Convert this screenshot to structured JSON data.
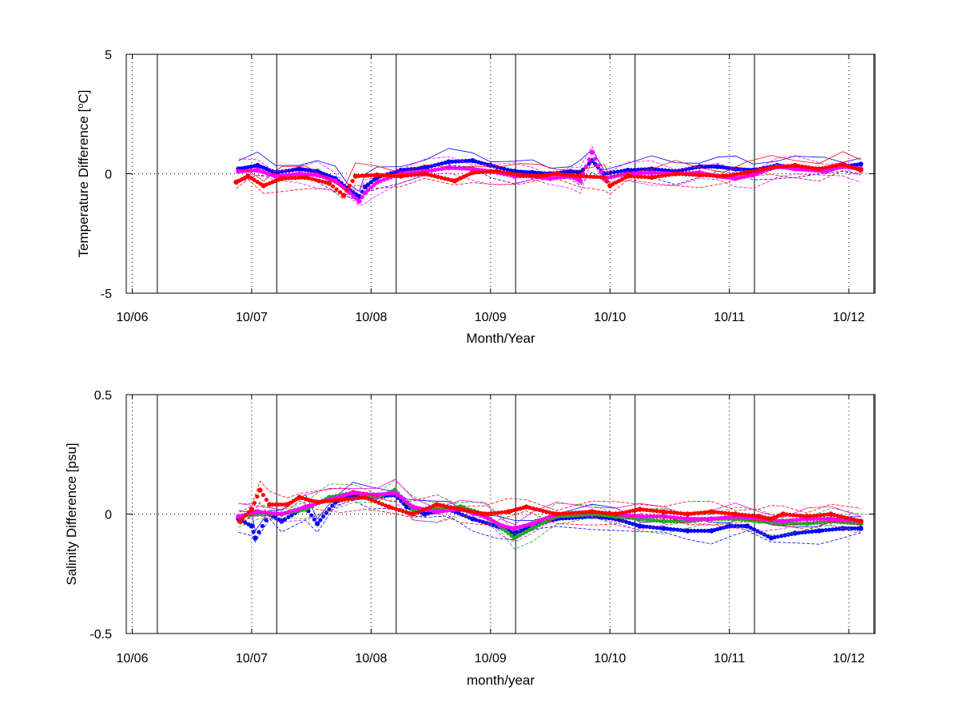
{
  "chart_data": [
    {
      "type": "line",
      "xlabel": "Month/Year",
      "ylabel": "Temperature Difference [°C]",
      "ylabel_parts": {
        "prefix": "Temperature Difference [",
        "superscript": "o",
        "suffix": "C]"
      },
      "ylim": [
        -5,
        5
      ],
      "yticks": [
        -5,
        0,
        5
      ],
      "xlim": [
        2006.7,
        2012.97
      ],
      "xtick_labels": [
        "10/06",
        "10/07",
        "10/08",
        "10/09",
        "10/10",
        "10/11",
        "10/12"
      ],
      "xtick_values": [
        2006.75,
        2007.75,
        2008.75,
        2009.75,
        2010.75,
        2011.75,
        2012.75
      ],
      "vertical_lines_solid": [
        2006.96,
        2007.96,
        2008.96,
        2009.96,
        2010.96,
        2011.96,
        2012.96,
        2013.52
      ],
      "grid_dotted": true,
      "series": [
        {
          "marker_color": "#0000ff",
          "values": [
            [
              2007.64,
              0.2
            ],
            [
              2007.8,
              0.35
            ],
            [
              2007.95,
              0.05
            ],
            [
              2008.15,
              0.2
            ],
            [
              2008.3,
              0.1
            ],
            [
              2008.45,
              -0.2
            ],
            [
              2008.55,
              -0.6
            ],
            [
              2008.65,
              -0.95
            ],
            [
              2008.7,
              -0.55
            ],
            [
              2008.8,
              -0.15
            ],
            [
              2009.0,
              0.15
            ],
            [
              2009.2,
              0.25
            ],
            [
              2009.4,
              0.5
            ],
            [
              2009.6,
              0.55
            ],
            [
              2009.75,
              0.35
            ],
            [
              2009.95,
              0.1
            ],
            [
              2010.1,
              0.05
            ],
            [
              2010.25,
              0.0
            ],
            [
              2010.42,
              0.1
            ],
            [
              2010.5,
              0.05
            ],
            [
              2010.6,
              0.55
            ],
            [
              2010.7,
              0.0
            ],
            [
              2010.9,
              0.15
            ],
            [
              2011.1,
              0.2
            ],
            [
              2011.3,
              0.1
            ],
            [
              2011.5,
              0.3
            ],
            [
              2011.65,
              0.3
            ],
            [
              2011.8,
              0.2
            ],
            [
              2011.95,
              0.15
            ],
            [
              2012.15,
              0.35
            ],
            [
              2012.3,
              0.25
            ],
            [
              2012.55,
              0.2
            ],
            [
              2012.7,
              0.3
            ],
            [
              2012.85,
              0.4
            ]
          ]
        },
        {
          "marker_color": "#ff00ff",
          "values": [
            [
              2007.64,
              0.1
            ],
            [
              2007.8,
              0.15
            ],
            [
              2007.95,
              -0.1
            ],
            [
              2008.15,
              0.0
            ],
            [
              2008.3,
              -0.05
            ],
            [
              2008.45,
              -0.3
            ],
            [
              2008.55,
              -0.7
            ],
            [
              2008.65,
              -1.15
            ],
            [
              2008.7,
              -0.8
            ],
            [
              2008.8,
              -0.35
            ],
            [
              2009.0,
              0.0
            ],
            [
              2009.2,
              0.1
            ],
            [
              2009.4,
              0.25
            ],
            [
              2009.6,
              0.2
            ],
            [
              2009.75,
              0.1
            ],
            [
              2009.95,
              -0.1
            ],
            [
              2010.1,
              -0.1
            ],
            [
              2010.25,
              -0.2
            ],
            [
              2010.42,
              -0.1
            ],
            [
              2010.5,
              -0.3
            ],
            [
              2010.6,
              0.9
            ],
            [
              2010.7,
              -0.2
            ],
            [
              2010.9,
              0.0
            ],
            [
              2011.1,
              0.05
            ],
            [
              2011.3,
              0.0
            ],
            [
              2011.5,
              0.05
            ],
            [
              2011.65,
              -0.1
            ],
            [
              2011.8,
              -0.2
            ],
            [
              2011.95,
              -0.05
            ],
            [
              2012.15,
              0.3
            ],
            [
              2012.3,
              0.2
            ],
            [
              2012.55,
              0.1
            ],
            [
              2012.7,
              0.3
            ],
            [
              2012.85,
              0.2
            ]
          ]
        },
        {
          "marker_color": "#ff0000",
          "values": [
            [
              2007.62,
              -0.35
            ],
            [
              2007.72,
              -0.1
            ],
            [
              2007.85,
              -0.5
            ],
            [
              2008.0,
              -0.2
            ],
            [
              2008.2,
              -0.15
            ],
            [
              2008.4,
              -0.4
            ],
            [
              2008.52,
              -0.9
            ],
            [
              2008.62,
              -0.1
            ],
            [
              2008.8,
              -0.05
            ],
            [
              2009.0,
              -0.1
            ],
            [
              2009.2,
              0.0
            ],
            [
              2009.45,
              -0.3
            ],
            [
              2009.6,
              0.05
            ],
            [
              2009.8,
              0.1
            ],
            [
              2010.0,
              -0.05
            ],
            [
              2010.15,
              -0.1
            ],
            [
              2010.3,
              0.0
            ],
            [
              2010.5,
              -0.1
            ],
            [
              2010.7,
              -0.15
            ],
            [
              2010.75,
              -0.5
            ],
            [
              2010.9,
              -0.1
            ],
            [
              2011.1,
              -0.15
            ],
            [
              2011.3,
              0.0
            ],
            [
              2011.5,
              -0.05
            ],
            [
              2011.7,
              -0.1
            ],
            [
              2011.9,
              0.05
            ],
            [
              2012.1,
              0.25
            ],
            [
              2012.3,
              0.35
            ],
            [
              2012.5,
              0.2
            ],
            [
              2012.7,
              0.4
            ],
            [
              2012.85,
              0.15
            ]
          ]
        }
      ]
    },
    {
      "type": "line",
      "xlabel": "month/year",
      "ylabel": "Salinity Difference [psu]",
      "ylim": [
        -0.5,
        0.5
      ],
      "yticks": [
        -0.5,
        0,
        0.5
      ],
      "xlim": [
        2006.7,
        2012.97
      ],
      "xtick_labels": [
        "10/06",
        "10/07",
        "10/08",
        "10/09",
        "10/10",
        "10/11",
        "10/12"
      ],
      "xtick_values": [
        2006.75,
        2007.75,
        2008.75,
        2009.75,
        2010.75,
        2011.75,
        2012.75
      ],
      "vertical_lines_solid": [
        2006.96,
        2007.96,
        2008.96,
        2009.96,
        2010.96,
        2011.96,
        2012.96,
        2013.52
      ],
      "grid_dotted": true,
      "series": [
        {
          "marker_color": "#0000ff",
          "values": [
            [
              2007.64,
              -0.02
            ],
            [
              2007.75,
              -0.05
            ],
            [
              2007.78,
              -0.1
            ],
            [
              2007.9,
              0.0
            ],
            [
              2008.0,
              -0.03
            ],
            [
              2008.2,
              0.03
            ],
            [
              2008.3,
              -0.04
            ],
            [
              2008.45,
              0.05
            ],
            [
              2008.6,
              0.08
            ],
            [
              2008.75,
              0.07
            ],
            [
              2008.95,
              0.08
            ],
            [
              2009.05,
              0.03
            ],
            [
              2009.2,
              0.0
            ],
            [
              2009.4,
              0.02
            ],
            [
              2009.6,
              -0.02
            ],
            [
              2009.8,
              -0.05
            ],
            [
              2009.95,
              -0.08
            ],
            [
              2010.1,
              -0.05
            ],
            [
              2010.3,
              -0.02
            ],
            [
              2010.6,
              -0.01
            ],
            [
              2010.8,
              -0.02
            ],
            [
              2011.0,
              -0.05
            ],
            [
              2011.2,
              -0.06
            ],
            [
              2011.4,
              -0.07
            ],
            [
              2011.6,
              -0.07
            ],
            [
              2011.75,
              -0.05
            ],
            [
              2011.9,
              -0.05
            ],
            [
              2012.1,
              -0.1
            ],
            [
              2012.3,
              -0.08
            ],
            [
              2012.5,
              -0.07
            ],
            [
              2012.7,
              -0.06
            ],
            [
              2012.85,
              -0.06
            ]
          ]
        },
        {
          "marker_color": "#22aa22",
          "values": [
            [
              2007.64,
              -0.01
            ],
            [
              2007.8,
              0.0
            ],
            [
              2008.0,
              0.0
            ],
            [
              2008.2,
              0.02
            ],
            [
              2008.4,
              0.07
            ],
            [
              2008.6,
              0.09
            ],
            [
              2008.8,
              0.07
            ],
            [
              2008.95,
              0.1
            ],
            [
              2009.1,
              0.02
            ],
            [
              2009.3,
              0.02
            ],
            [
              2009.5,
              0.03
            ],
            [
              2009.7,
              0.0
            ],
            [
              2009.85,
              -0.06
            ],
            [
              2009.95,
              -0.1
            ],
            [
              2010.1,
              -0.06
            ],
            [
              2010.3,
              -0.01
            ],
            [
              2010.6,
              0.0
            ],
            [
              2010.8,
              -0.01
            ],
            [
              2011.0,
              -0.02
            ],
            [
              2011.2,
              -0.03
            ],
            [
              2011.4,
              -0.03
            ],
            [
              2011.6,
              -0.02
            ],
            [
              2011.8,
              -0.02
            ],
            [
              2012.0,
              -0.03
            ],
            [
              2012.2,
              -0.04
            ],
            [
              2012.4,
              -0.04
            ],
            [
              2012.6,
              -0.03
            ],
            [
              2012.85,
              -0.04
            ]
          ]
        },
        {
          "marker_color": "#ff00ff",
          "values": [
            [
              2007.64,
              -0.01
            ],
            [
              2007.8,
              0.01
            ],
            [
              2008.0,
              0.0
            ],
            [
              2008.2,
              0.03
            ],
            [
              2008.4,
              0.06
            ],
            [
              2008.6,
              0.09
            ],
            [
              2008.8,
              0.08
            ],
            [
              2008.95,
              0.09
            ],
            [
              2009.1,
              0.03
            ],
            [
              2009.3,
              0.01
            ],
            [
              2009.5,
              0.02
            ],
            [
              2009.7,
              -0.01
            ],
            [
              2009.85,
              -0.05
            ],
            [
              2009.95,
              -0.06
            ],
            [
              2010.1,
              -0.04
            ],
            [
              2010.3,
              0.0
            ],
            [
              2010.6,
              0.01
            ],
            [
              2010.8,
              0.0
            ],
            [
              2011.0,
              -0.01
            ],
            [
              2011.2,
              -0.01
            ],
            [
              2011.4,
              -0.02
            ],
            [
              2011.6,
              -0.02
            ],
            [
              2011.8,
              -0.01
            ],
            [
              2012.0,
              -0.02
            ],
            [
              2012.2,
              -0.03
            ],
            [
              2012.4,
              -0.02
            ],
            [
              2012.6,
              -0.02
            ],
            [
              2012.85,
              -0.03
            ]
          ]
        },
        {
          "marker_color": "#ff0000",
          "values": [
            [
              2007.65,
              -0.03
            ],
            [
              2007.75,
              0.02
            ],
            [
              2007.82,
              0.1
            ],
            [
              2007.9,
              0.04
            ],
            [
              2008.05,
              0.04
            ],
            [
              2008.15,
              0.07
            ],
            [
              2008.3,
              0.05
            ],
            [
              2008.5,
              0.06
            ],
            [
              2008.7,
              0.07
            ],
            [
              2008.9,
              0.03
            ],
            [
              2009.1,
              0.0
            ],
            [
              2009.3,
              0.04
            ],
            [
              2009.5,
              0.02
            ],
            [
              2009.7,
              0.0
            ],
            [
              2009.9,
              0.01
            ],
            [
              2010.05,
              0.03
            ],
            [
              2010.3,
              0.0
            ],
            [
              2010.6,
              0.01
            ],
            [
              2010.8,
              0.0
            ],
            [
              2011.0,
              0.02
            ],
            [
              2011.2,
              0.01
            ],
            [
              2011.4,
              0.0
            ],
            [
              2011.6,
              0.01
            ],
            [
              2011.8,
              0.0
            ],
            [
              2012.0,
              -0.01
            ],
            [
              2012.1,
              -0.02
            ],
            [
              2012.2,
              0.0
            ],
            [
              2012.4,
              -0.01
            ],
            [
              2012.6,
              0.0
            ],
            [
              2012.85,
              -0.03
            ]
          ]
        }
      ]
    }
  ]
}
